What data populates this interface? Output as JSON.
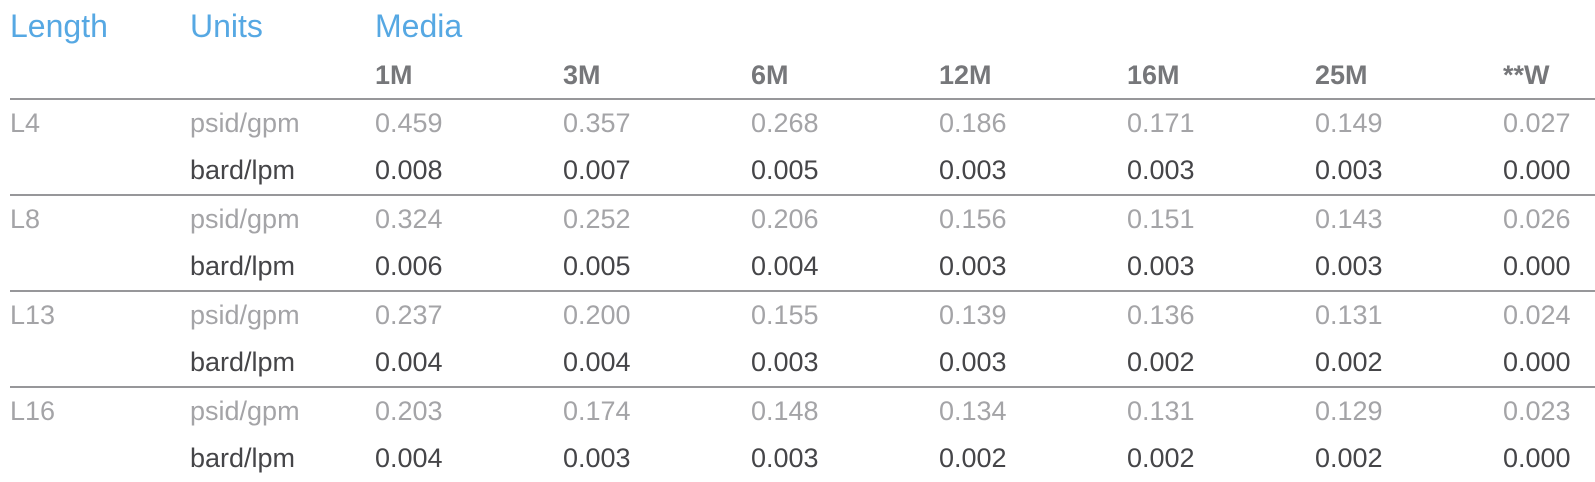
{
  "colors": {
    "accent_blue": "#56a8e3",
    "media_header_gray": "#76777a",
    "imperial_row_gray": "#a4a4a7",
    "metric_row_dark": "#454548",
    "separator_line": "#97979a",
    "background": "#ffffff"
  },
  "chart_data": {
    "type": "table",
    "title": "",
    "header": {
      "length_label": "Length",
      "units_label": "Units",
      "media_label": "Media"
    },
    "media_columns": [
      "1M",
      "3M",
      "6M",
      "12M",
      "16M",
      "25M",
      "**W"
    ],
    "groups": [
      {
        "length": "L4",
        "imperial": {
          "units": "psid/gpm",
          "values": [
            "0.459",
            "0.357",
            "0.268",
            "0.186",
            "0.171",
            "0.149",
            "0.027"
          ]
        },
        "metric": {
          "units": "bard/lpm",
          "values": [
            "0.008",
            "0.007",
            "0.005",
            "0.003",
            "0.003",
            "0.003",
            "0.000"
          ]
        }
      },
      {
        "length": "L8",
        "imperial": {
          "units": "psid/gpm",
          "values": [
            "0.324",
            "0.252",
            "0.206",
            "0.156",
            "0.151",
            "0.143",
            "0.026"
          ]
        },
        "metric": {
          "units": "bard/lpm",
          "values": [
            "0.006",
            "0.005",
            "0.004",
            "0.003",
            "0.003",
            "0.003",
            "0.000"
          ]
        }
      },
      {
        "length": "L13",
        "imperial": {
          "units": "psid/gpm",
          "values": [
            "0.237",
            "0.200",
            "0.155",
            "0.139",
            "0.136",
            "0.131",
            "0.024"
          ]
        },
        "metric": {
          "units": "bard/lpm",
          "values": [
            "0.004",
            "0.004",
            "0.003",
            "0.003",
            "0.002",
            "0.002",
            "0.000"
          ]
        }
      },
      {
        "length": "L16",
        "imperial": {
          "units": "psid/gpm",
          "values": [
            "0.203",
            "0.174",
            "0.148",
            "0.134",
            "0.131",
            "0.129",
            "0.023"
          ]
        },
        "metric": {
          "units": "bard/lpm",
          "values": [
            "0.004",
            "0.003",
            "0.003",
            "0.002",
            "0.002",
            "0.002",
            "0.000"
          ]
        }
      }
    ]
  }
}
